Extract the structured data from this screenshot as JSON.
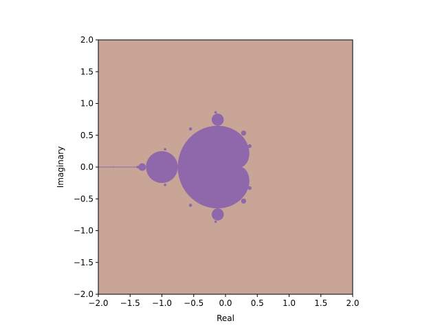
{
  "chart_data": {
    "type": "heatmap",
    "title": "",
    "xlabel": "Real",
    "ylabel": "Imaginary",
    "xlim": [
      -2.0,
      2.0
    ],
    "ylim": [
      -2.0,
      2.0
    ],
    "grid": false,
    "x_ticks": [
      "−2.0",
      "−1.5",
      "−1.0",
      "−0.5",
      "0.0",
      "0.5",
      "1.0",
      "1.5",
      "2.0"
    ],
    "x_tick_values": [
      -2.0,
      -1.5,
      -1.0,
      -0.5,
      0.0,
      0.5,
      1.0,
      1.5,
      2.0
    ],
    "y_ticks": [
      "−2.0",
      "−1.5",
      "−1.0",
      "−0.5",
      "0.0",
      "0.5",
      "1.0",
      "1.5",
      "2.0"
    ],
    "y_tick_values": [
      -2.0,
      -1.5,
      -1.0,
      -0.5,
      0.0,
      0.5,
      1.0,
      1.5,
      2.0
    ],
    "colors": {
      "outside": "#c8a597",
      "inside": "#8f67ab"
    }
  }
}
